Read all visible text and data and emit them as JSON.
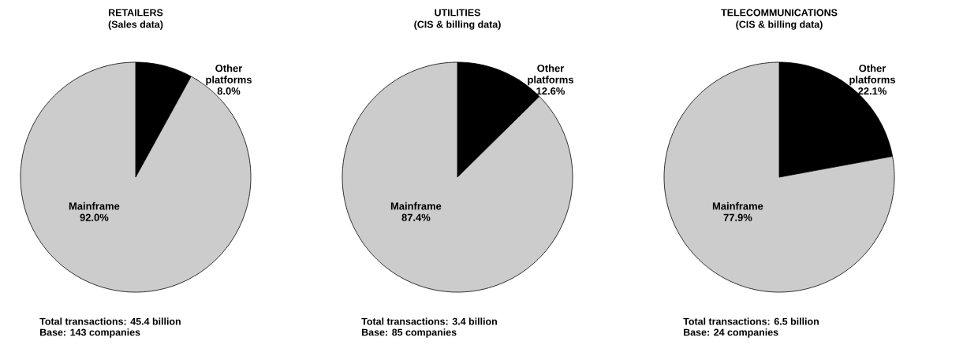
{
  "chart_data": [
    {
      "type": "pie",
      "title": "RETAILERS",
      "subtitle": "(Sales data)",
      "categories": [
        "Other platforms",
        "Mainframe"
      ],
      "values": [
        8.0,
        92.0
      ],
      "colors": [
        "#000000",
        "#cccccc"
      ],
      "value_labels": [
        "8.0%",
        "92.0%"
      ],
      "annotations": [
        "Total transactions: 45.4 billion",
        "Base: 143 companies"
      ]
    },
    {
      "type": "pie",
      "title": "UTILITIES",
      "subtitle": "(CIS & billing data)",
      "categories": [
        "Other platforms",
        "Mainframe"
      ],
      "values": [
        12.6,
        87.4
      ],
      "colors": [
        "#000000",
        "#cccccc"
      ],
      "value_labels": [
        "12.6%",
        "87.4%"
      ],
      "annotations": [
        "Total transactions: 3.4 billion",
        "Base: 85 companies"
      ]
    },
    {
      "type": "pie",
      "title": "TELECOMMUNICATIONS",
      "subtitle": "(CIS & billing data)",
      "categories": [
        "Other platforms",
        "Mainframe"
      ],
      "values": [
        22.1,
        77.9
      ],
      "colors": [
        "#000000",
        "#cccccc"
      ],
      "value_labels": [
        "22.1%",
        "77.9%"
      ],
      "annotations": [
        "Total transactions: 6.5 billion",
        "Base: 24 companies"
      ]
    }
  ]
}
